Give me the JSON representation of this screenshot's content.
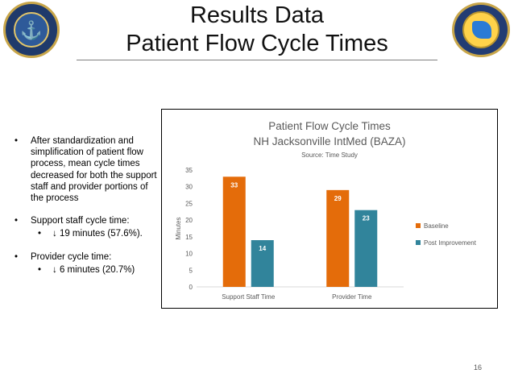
{
  "header": {
    "title_line1": "Results Data",
    "title_line2": "Patient Flow Cycle Times"
  },
  "logos": {
    "left": "navy-medicine-seal",
    "right": "naval-hospital-jacksonville-seal"
  },
  "bullets": {
    "b1": "After standardization and simplification of patient flow process, mean cycle times decreased for both the support staff and provider portions of the process",
    "b2": "Support staff cycle time:",
    "b2_sub": "↓ 19 minutes (57.6%).",
    "b3": "Provider cycle time:",
    "b3_sub": "↓ 6 minutes (20.7%)",
    "marker": "•"
  },
  "chart_data": {
    "type": "bar",
    "title": "Patient Flow Cycle Times",
    "subtitle": "NH Jacksonville IntMed (BAZA)",
    "source": "Source: Time Study",
    "ylabel": "Minutes",
    "xlabel": "",
    "categories": [
      "Support Staff Time",
      "Provider Time"
    ],
    "series": [
      {
        "name": "Baseline",
        "values": [
          33,
          29
        ],
        "color": "#E46C0A"
      },
      {
        "name": "Post Improvement",
        "values": [
          14,
          23
        ],
        "color": "#31849B"
      }
    ],
    "ylim": [
      0,
      35
    ],
    "yticks": [
      0,
      5,
      10,
      15,
      20,
      25,
      30,
      35
    ],
    "legend": "right",
    "grid": false
  },
  "footer": {
    "page_number": "16"
  }
}
